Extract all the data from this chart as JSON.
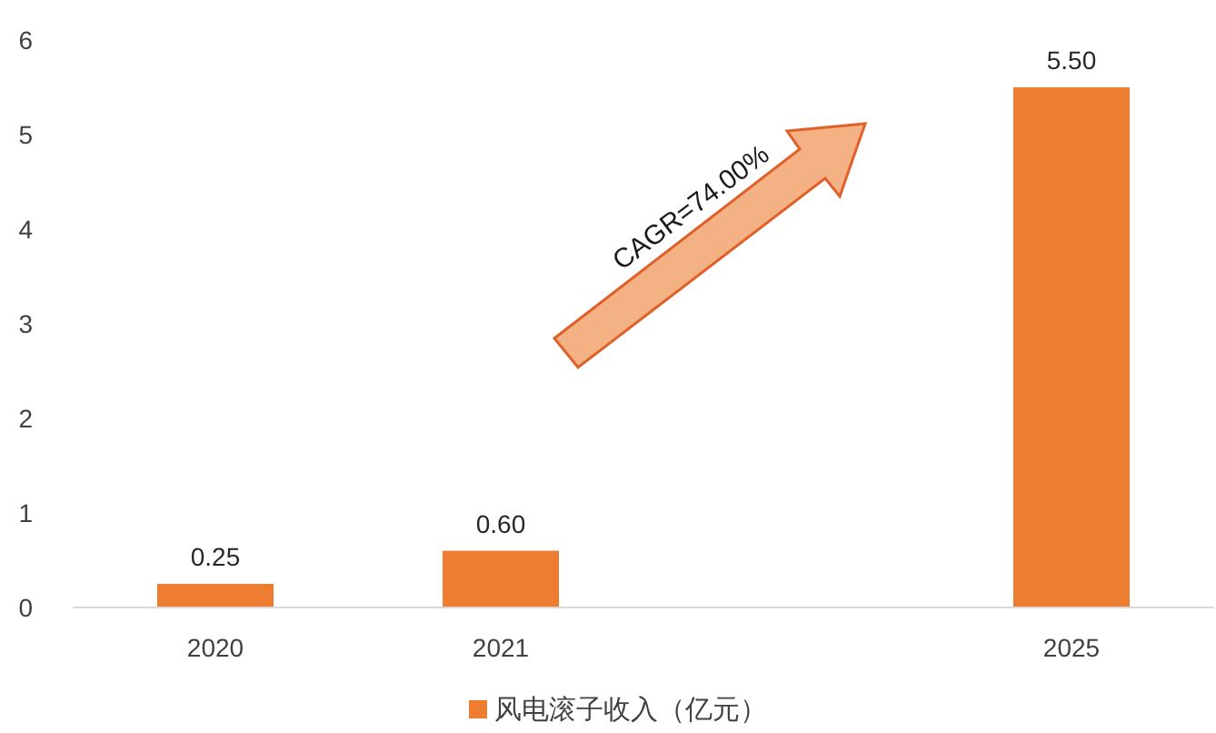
{
  "chart_data": {
    "type": "bar",
    "categories": [
      "2020",
      "2021",
      null,
      "2025"
    ],
    "series": [
      {
        "name": "风电滚子收入（亿元）",
        "color": "#ed7d31",
        "values": [
          0.25,
          0.6,
          null,
          5.5
        ],
        "value_labels": [
          "0.25",
          "0.60",
          null,
          "5.50"
        ]
      }
    ],
    "ylim": [
      0,
      6
    ],
    "yticks": [
      0,
      1,
      2,
      3,
      4,
      5,
      6
    ],
    "legend": "bottom",
    "annotations": [
      "CAGR=74.00%"
    ]
  }
}
